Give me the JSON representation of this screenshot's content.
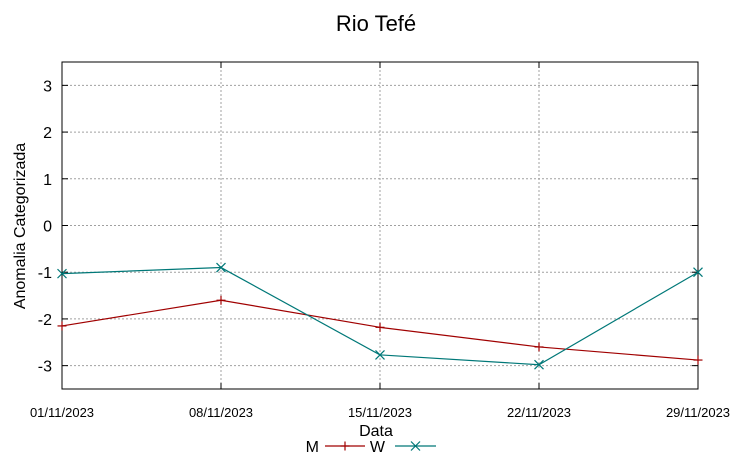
{
  "chart_data": {
    "type": "line",
    "title": "Rio Tefé",
    "xlabel": "Data",
    "ylabel": "Anomalia Categorizada",
    "x": [
      "01/11/2023",
      "08/11/2023",
      "15/11/2023",
      "22/11/2023",
      "29/11/2023"
    ],
    "ylim": [
      -3.5,
      3.5
    ],
    "yticks": [
      3,
      2,
      1,
      0,
      -1,
      -2,
      -3
    ],
    "grid": true,
    "legend_position": "bottom-center",
    "series": [
      {
        "name": "M",
        "color": "#a00000",
        "marker": "plus",
        "values": [
          -2.15,
          -1.6,
          -2.18,
          -2.6,
          -2.88
        ]
      },
      {
        "name": "W",
        "color": "#007878",
        "marker": "cross",
        "values": [
          -1.03,
          -0.9,
          -2.77,
          -2.98,
          -1.0
        ]
      }
    ]
  }
}
